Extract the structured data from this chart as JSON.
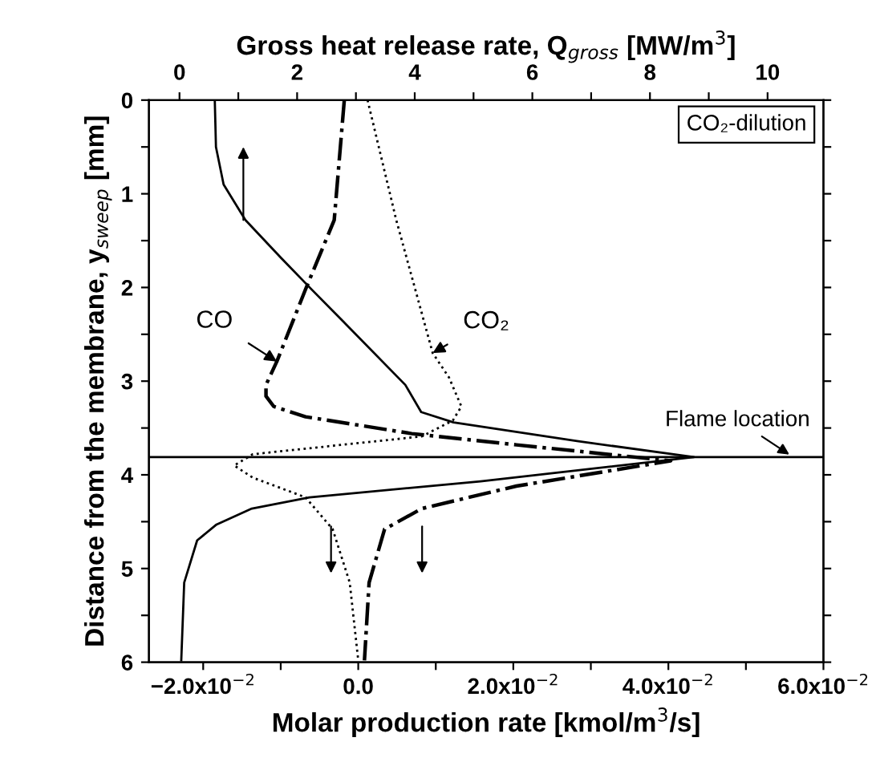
{
  "chart_data": {
    "type": "line",
    "xlabel": "Molar production rate [kmol/m$^{3}$/s]",
    "ylabel": "Distance from the membrane, y$_{sweep}$ [mm]",
    "x2label": "Gross heat release rate, Q$_{gross}$ [MW/m$^{3}$]",
    "xlim": [
      -0.027,
      0.06
    ],
    "xticks": [
      {
        "value": -0.02,
        "label": "−2.0x10$^{−2}$"
      },
      {
        "value": -0.01,
        "label": null
      },
      {
        "value": 0,
        "label": "0.0"
      },
      {
        "value": 0.01,
        "label": null
      },
      {
        "value": 0.02,
        "label": "2.0x10$^{−2}$"
      },
      {
        "value": 0.03,
        "label": null
      },
      {
        "value": 0.04,
        "label": "4.0x10$^{−2}$"
      },
      {
        "value": 0.05,
        "label": null
      },
      {
        "value": 0.06,
        "label": "6.0x10$^{−2}$"
      }
    ],
    "x2lim": [
      -0.52,
      10.95
    ],
    "x2ticks": [
      0,
      {
        "value": 1,
        "label": null
      },
      2,
      {
        "value": 3,
        "label": null
      },
      4,
      {
        "value": 5,
        "label": null
      },
      6,
      {
        "value": 7,
        "label": null
      },
      8,
      {
        "value": 9,
        "label": null
      },
      10
    ],
    "ylim": [
      6,
      0
    ],
    "yticks": [
      0,
      {
        "value": 0.5,
        "label": null
      },
      1,
      {
        "value": 1.5,
        "label": null
      },
      2,
      {
        "value": 2.5,
        "label": null
      },
      3,
      {
        "value": 3.5,
        "label": null
      },
      4,
      {
        "value": 4.5,
        "label": null
      },
      5,
      {
        "value": 5.5,
        "label": null
      },
      6
    ],
    "grid": false,
    "series": [
      {
        "axis": "x2",
        "color": "#000000",
        "line_style": "solid",
        "x": [
          0.6,
          0.62,
          0.75,
          1.12,
          1.72,
          2.26,
          2.78,
          3.84,
          4.11,
          4.66,
          6.76,
          8.75,
          5.12,
          2.21,
          1.23,
          0.63,
          0.3,
          0.08,
          0.03
        ],
        "values": [
          0,
          0.5,
          0.9,
          1.28,
          1.68,
          2.03,
          2.36,
          3.04,
          3.33,
          3.44,
          3.64,
          3.81,
          4.07,
          4.24,
          4.36,
          4.53,
          4.7,
          5.15,
          5.98
        ]
      },
      {
        "name": "CO",
        "color": "#000000",
        "line_style": "dashdot",
        "x": [
          -0.0018,
          -0.0031,
          -0.0068,
          -0.0105,
          -0.0119,
          -0.0119,
          -0.0109,
          -0.0068,
          0.0069,
          0.0204,
          0.0403,
          0.0204,
          0.0082,
          0.0034,
          0.0014,
          0.0008
        ],
        "values": [
          0,
          1.28,
          2.02,
          2.79,
          3.04,
          3.16,
          3.27,
          3.38,
          3.56,
          3.68,
          3.85,
          4.12,
          4.36,
          4.58,
          5.15,
          5.98
        ]
      },
      {
        "name": "CO₂",
        "color": "#000000",
        "line_style": "dotted",
        "x": [
          0.0012,
          0.0049,
          0.0096,
          0.0117,
          0.0133,
          0.0122,
          0.0082,
          -0.0033,
          -0.0136,
          -0.016,
          -0.0136,
          -0.0068,
          -0.0033,
          -0.0011,
          0.0
        ],
        "values": [
          0,
          1.28,
          2.7,
          2.96,
          3.27,
          3.42,
          3.59,
          3.69,
          3.78,
          3.9,
          4.03,
          4.24,
          4.58,
          5.15,
          5.98
        ]
      }
    ],
    "ref_lines": [
      {
        "axis": "y",
        "value": 3.81,
        "label": "Flame location",
        "color": "#000000",
        "line_style": "solid"
      }
    ],
    "annotations": [
      "CO₂-dilution"
    ]
  }
}
